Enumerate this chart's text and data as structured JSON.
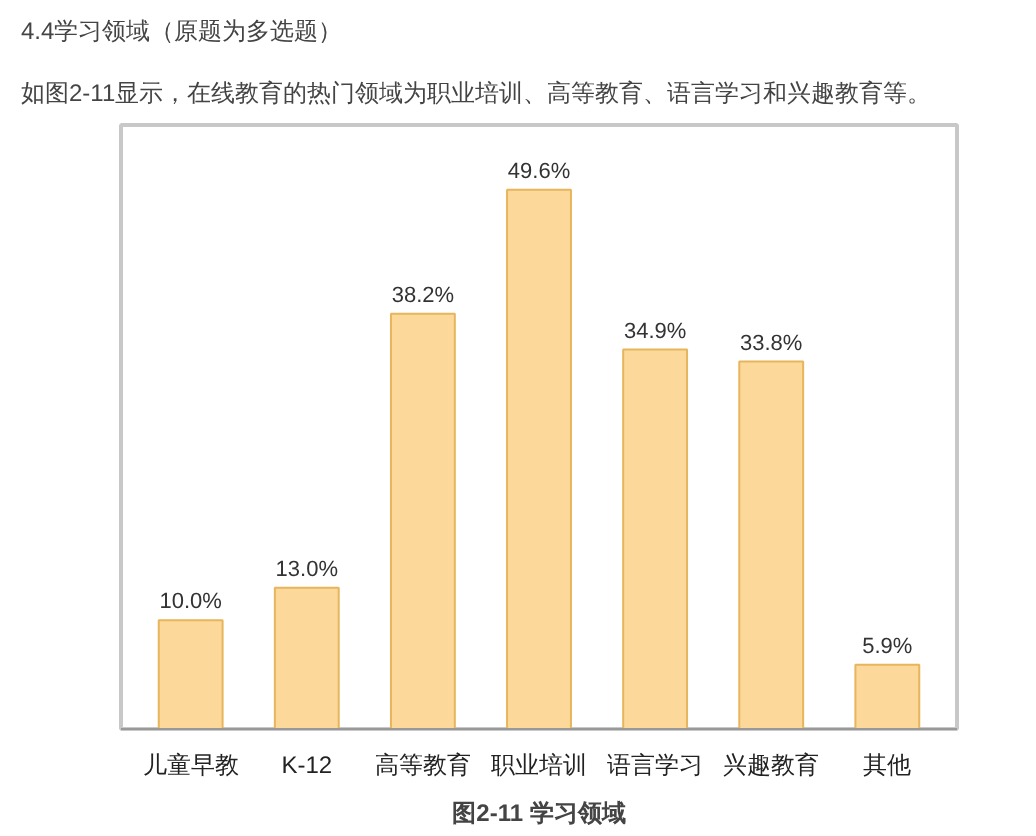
{
  "chart_data": {
    "type": "bar",
    "title": "4.4学习领域（原题为多选题）",
    "subtitle": "如图2-11显示，在线教育的热门领域为职业培训、高等教育、语言学习和兴趣教育等。",
    "categories": [
      "儿童早教",
      "K-12",
      "高等教育",
      "职业培训",
      "语言学习",
      "兴趣教育",
      "其他"
    ],
    "values": [
      10.0,
      13.0,
      38.2,
      49.6,
      34.9,
      33.8,
      5.9
    ],
    "value_labels": [
      "10.0%",
      "13.0%",
      "38.2%",
      "49.6%",
      "34.9%",
      "33.8%",
      "5.9%"
    ],
    "color": "#fcd99a",
    "annotations": [
      "图2-11 学习领域"
    ]
  }
}
